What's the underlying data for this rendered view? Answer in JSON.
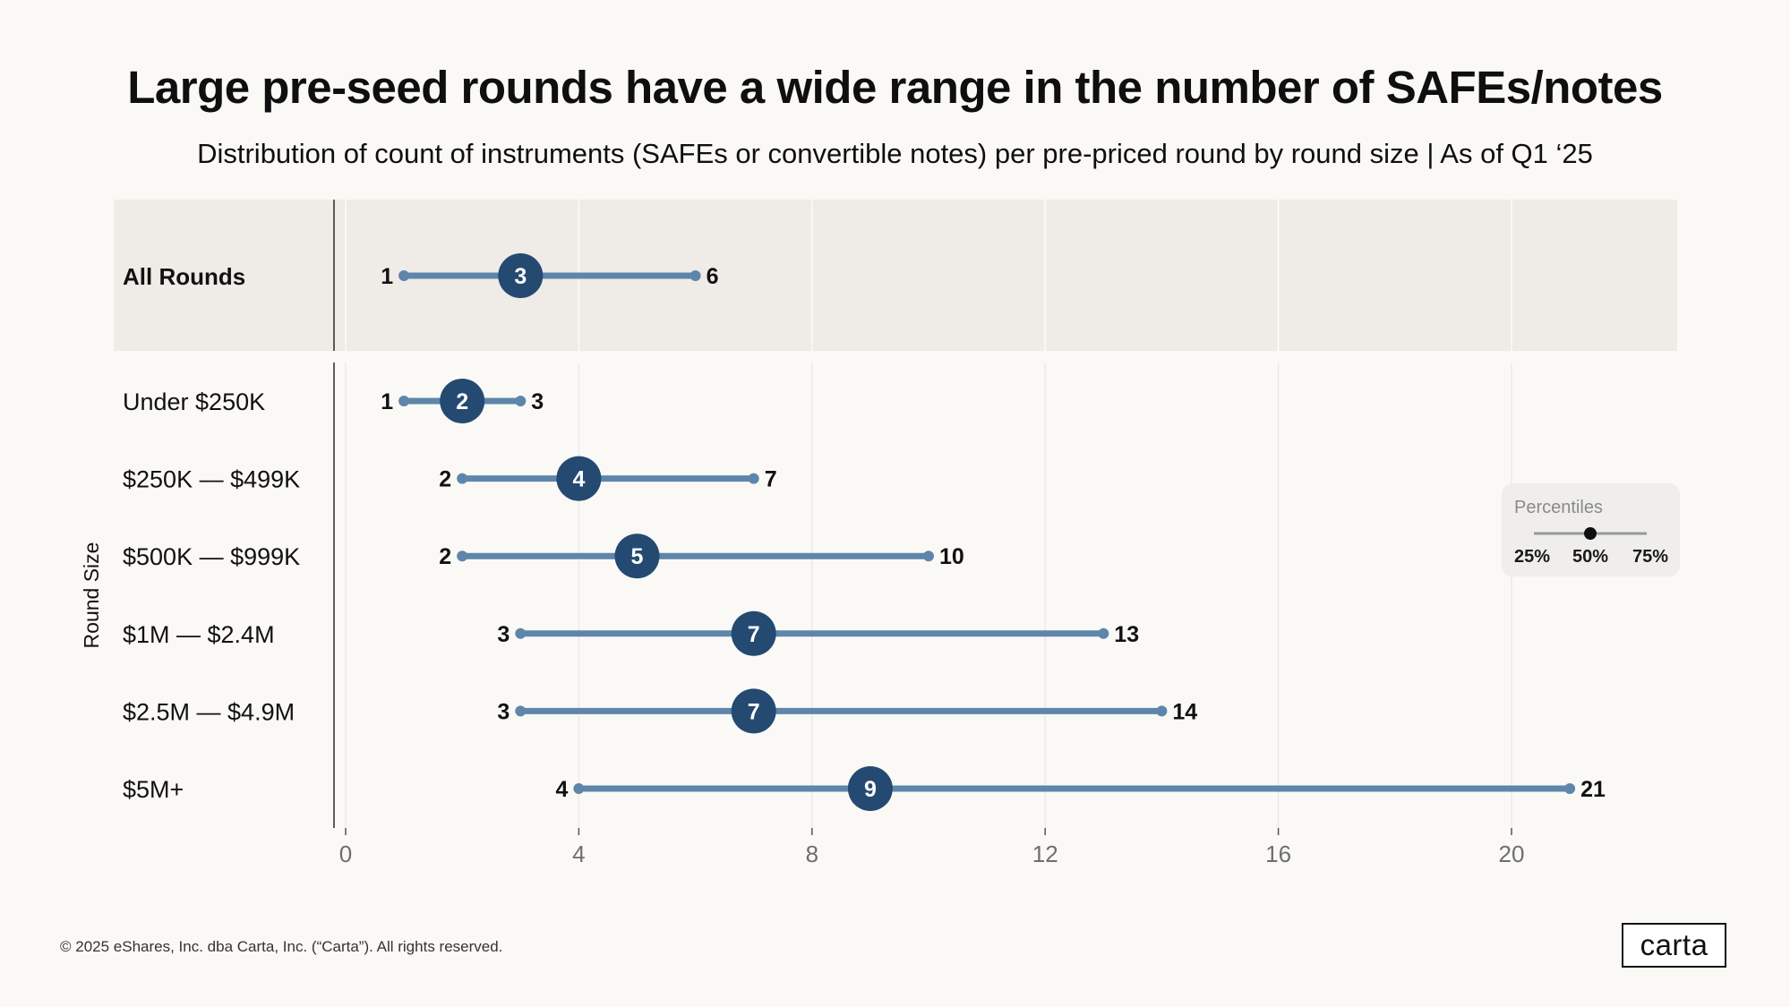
{
  "header": {
    "title": "Large pre-seed rounds have a wide range in the number of SAFEs/notes",
    "subtitle": "Distribution of count of instruments (SAFEs or convertible notes) per pre-priced round by round size | As of Q1 ‘25"
  },
  "chart_data": {
    "type": "dumbbell",
    "ylabel": "Round Size",
    "xlim": [
      0,
      22.6
    ],
    "x_ticks": [
      0,
      4,
      8,
      12,
      16,
      20
    ],
    "grid": true,
    "legend": {
      "title": "Percentiles",
      "labels": [
        "25%",
        "50%",
        "75%"
      ],
      "placement": "right"
    },
    "summary_row": {
      "category": "All Rounds",
      "p25": 1,
      "p50": 3,
      "p75": 6
    },
    "rows": [
      {
        "category": "Under $250K",
        "p25": 1,
        "p50": 2,
        "p75": 3
      },
      {
        "category": "$250K — $499K",
        "p25": 2,
        "p50": 4,
        "p75": 7
      },
      {
        "category": "$500K — $999K",
        "p25": 2,
        "p50": 5,
        "p75": 10
      },
      {
        "category": "$1M — $2.4M",
        "p25": 3,
        "p50": 7,
        "p75": 13
      },
      {
        "category": "$2.5M — $4.9M",
        "p25": 3,
        "p50": 7,
        "p75": 14
      },
      {
        "category": "$5M+",
        "p25": 4,
        "p50": 9,
        "p75": 21
      }
    ],
    "colors": {
      "line": "#5e86ab",
      "median": "#244a72",
      "summary_bg": "#efebe7",
      "legend_bg": "#efeeec"
    }
  },
  "footer": {
    "copyright": "© 2025 eShares, Inc. dba Carta, Inc. (“Carta”). All rights reserved.",
    "logo": "carta"
  }
}
